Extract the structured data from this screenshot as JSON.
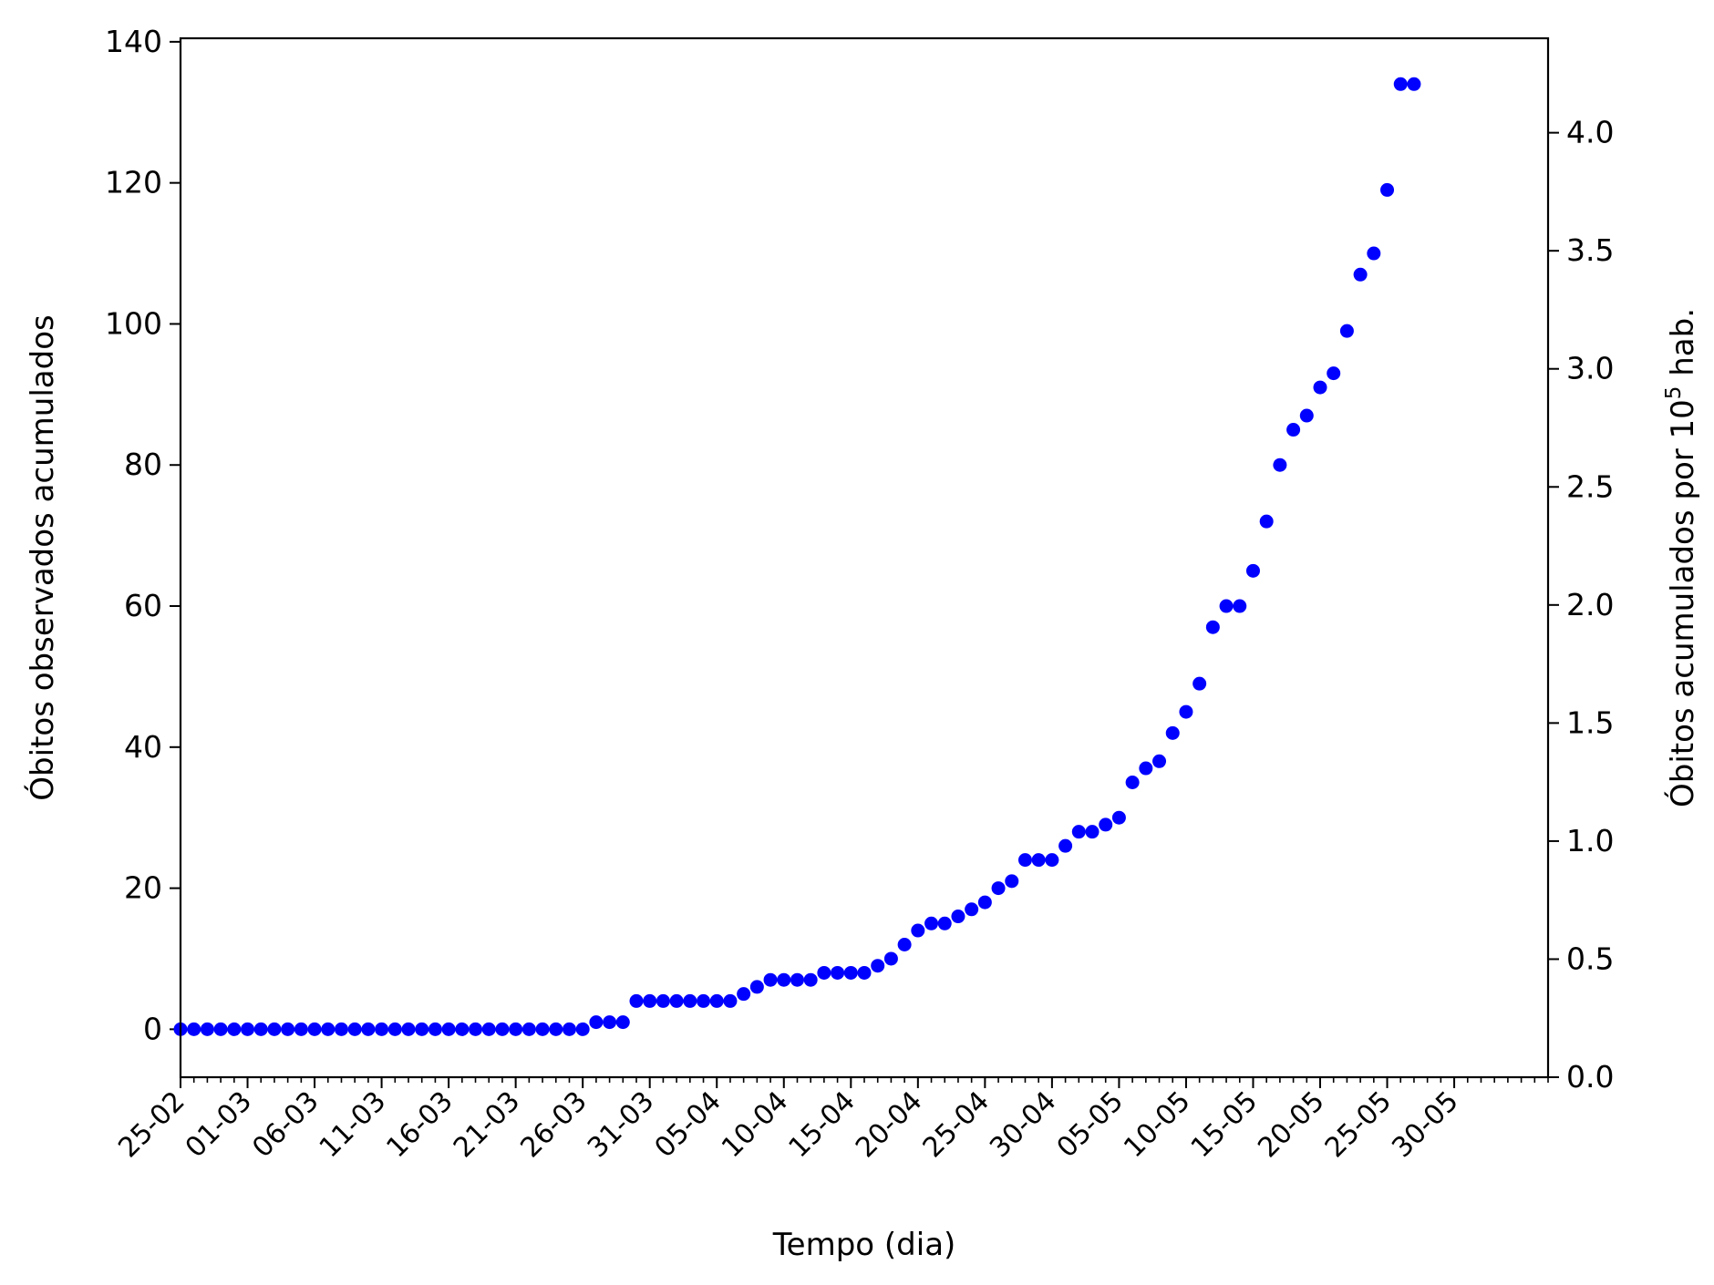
{
  "chart_data": {
    "type": "scatter",
    "xlabel": "Tempo (dia)",
    "ylabel": "Óbitos observados acumulados",
    "ylabel_right": "Óbitos acumulados por 10",
    "ylabel_right_sup": "5",
    "ylabel_right_suffix": " hab.",
    "x_ticks": [
      "25-02",
      "01-03",
      "06-03",
      "11-03",
      "16-03",
      "21-03",
      "26-03",
      "31-03",
      "05-04",
      "10-04",
      "15-04",
      "20-04",
      "25-04",
      "30-04",
      "05-05",
      "10-05",
      "15-05",
      "20-05",
      "25-05",
      "30-05"
    ],
    "y_ticks": [
      "0",
      "20",
      "40",
      "60",
      "80",
      "100",
      "120",
      "140"
    ],
    "y2_ticks": [
      "0.0",
      "0.5",
      "1.0",
      "1.5",
      "2.0",
      "2.5",
      "3.0",
      "3.5",
      "4.0"
    ],
    "ylim": [
      -6.8,
      140.5
    ],
    "y2lim": [
      0.0,
      4.4
    ],
    "x_start": "25-02",
    "x_end": "06-06",
    "grid": false,
    "marker_color": "#0000ff",
    "points": [
      {
        "x": "25-02",
        "y": 0
      },
      {
        "x": "26-02",
        "y": 0
      },
      {
        "x": "27-02",
        "y": 0
      },
      {
        "x": "28-02",
        "y": 0
      },
      {
        "x": "29-02",
        "y": 0
      },
      {
        "x": "01-03",
        "y": 0
      },
      {
        "x": "02-03",
        "y": 0
      },
      {
        "x": "03-03",
        "y": 0
      },
      {
        "x": "04-03",
        "y": 0
      },
      {
        "x": "05-03",
        "y": 0
      },
      {
        "x": "06-03",
        "y": 0
      },
      {
        "x": "07-03",
        "y": 0
      },
      {
        "x": "08-03",
        "y": 0
      },
      {
        "x": "09-03",
        "y": 0
      },
      {
        "x": "10-03",
        "y": 0
      },
      {
        "x": "11-03",
        "y": 0
      },
      {
        "x": "12-03",
        "y": 0
      },
      {
        "x": "13-03",
        "y": 0
      },
      {
        "x": "14-03",
        "y": 0
      },
      {
        "x": "15-03",
        "y": 0
      },
      {
        "x": "16-03",
        "y": 0
      },
      {
        "x": "17-03",
        "y": 0
      },
      {
        "x": "18-03",
        "y": 0
      },
      {
        "x": "19-03",
        "y": 0
      },
      {
        "x": "20-03",
        "y": 0
      },
      {
        "x": "21-03",
        "y": 0
      },
      {
        "x": "22-03",
        "y": 0
      },
      {
        "x": "23-03",
        "y": 0
      },
      {
        "x": "24-03",
        "y": 0
      },
      {
        "x": "25-03",
        "y": 0
      },
      {
        "x": "26-03",
        "y": 0
      },
      {
        "x": "27-03",
        "y": 1
      },
      {
        "x": "28-03",
        "y": 1
      },
      {
        "x": "29-03",
        "y": 1
      },
      {
        "x": "30-03",
        "y": 4
      },
      {
        "x": "31-03",
        "y": 4
      },
      {
        "x": "01-04",
        "y": 4
      },
      {
        "x": "02-04",
        "y": 4
      },
      {
        "x": "03-04",
        "y": 4
      },
      {
        "x": "04-04",
        "y": 4
      },
      {
        "x": "05-04",
        "y": 4
      },
      {
        "x": "06-04",
        "y": 4
      },
      {
        "x": "07-04",
        "y": 5
      },
      {
        "x": "08-04",
        "y": 6
      },
      {
        "x": "09-04",
        "y": 7
      },
      {
        "x": "10-04",
        "y": 7
      },
      {
        "x": "11-04",
        "y": 7
      },
      {
        "x": "12-04",
        "y": 7
      },
      {
        "x": "13-04",
        "y": 8
      },
      {
        "x": "14-04",
        "y": 8
      },
      {
        "x": "15-04",
        "y": 8
      },
      {
        "x": "16-04",
        "y": 8
      },
      {
        "x": "17-04",
        "y": 9
      },
      {
        "x": "18-04",
        "y": 10
      },
      {
        "x": "19-04",
        "y": 12
      },
      {
        "x": "20-04",
        "y": 14
      },
      {
        "x": "21-04",
        "y": 15
      },
      {
        "x": "22-04",
        "y": 15
      },
      {
        "x": "23-04",
        "y": 16
      },
      {
        "x": "24-04",
        "y": 17
      },
      {
        "x": "25-04",
        "y": 18
      },
      {
        "x": "26-04",
        "y": 20
      },
      {
        "x": "27-04",
        "y": 21
      },
      {
        "x": "28-04",
        "y": 24
      },
      {
        "x": "29-04",
        "y": 24
      },
      {
        "x": "30-04",
        "y": 24
      },
      {
        "x": "01-05",
        "y": 26
      },
      {
        "x": "02-05",
        "y": 28
      },
      {
        "x": "03-05",
        "y": 28
      },
      {
        "x": "04-05",
        "y": 29
      },
      {
        "x": "05-05",
        "y": 30
      },
      {
        "x": "06-05",
        "y": 35
      },
      {
        "x": "07-05",
        "y": 37
      },
      {
        "x": "08-05",
        "y": 38
      },
      {
        "x": "09-05",
        "y": 42
      },
      {
        "x": "10-05",
        "y": 45
      },
      {
        "x": "11-05",
        "y": 49
      },
      {
        "x": "12-05",
        "y": 57
      },
      {
        "x": "13-05",
        "y": 60
      },
      {
        "x": "14-05",
        "y": 60
      },
      {
        "x": "15-05",
        "y": 65
      },
      {
        "x": "16-05",
        "y": 72
      },
      {
        "x": "17-05",
        "y": 80
      },
      {
        "x": "18-05",
        "y": 85
      },
      {
        "x": "19-05",
        "y": 87
      },
      {
        "x": "20-05",
        "y": 91
      },
      {
        "x": "21-05",
        "y": 93
      },
      {
        "x": "22-05",
        "y": 99
      },
      {
        "x": "23-05",
        "y": 107
      },
      {
        "x": "24-05",
        "y": 110
      },
      {
        "x": "25-05",
        "y": 119
      },
      {
        "x": "26-05",
        "y": 134
      },
      {
        "x": "27-05",
        "y": 134
      }
    ]
  }
}
